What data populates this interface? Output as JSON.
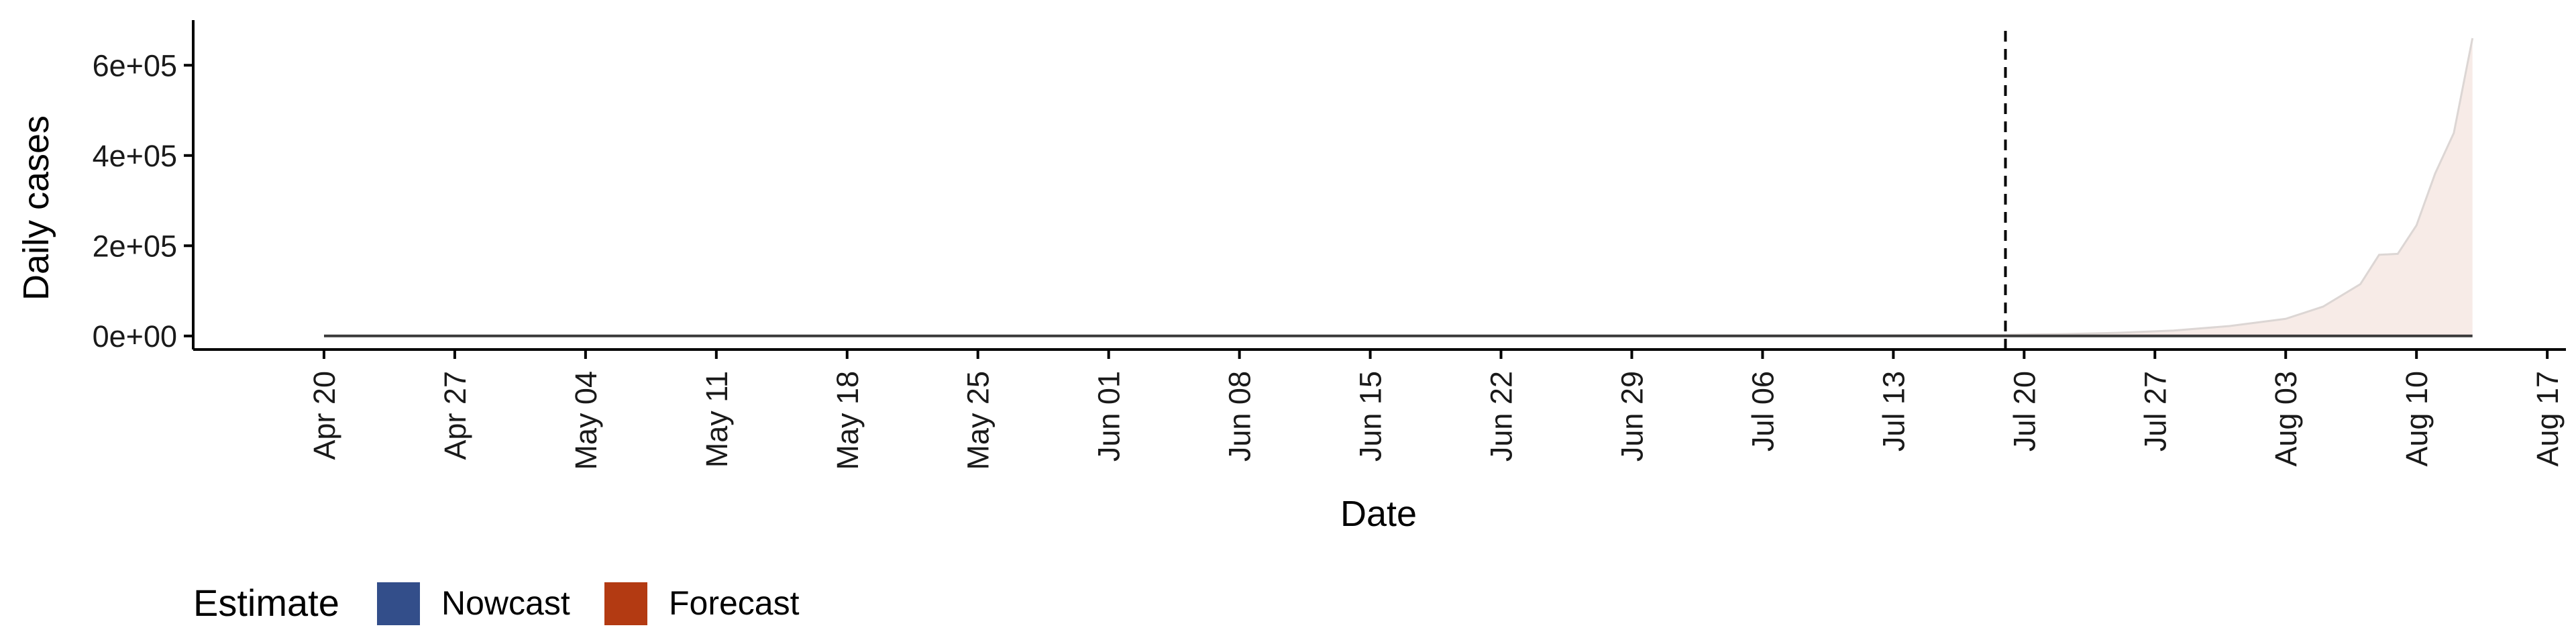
{
  "chart_data": {
    "type": "area",
    "title": "",
    "xlabel": "Date",
    "ylabel": "Daily cases",
    "x_ticks": [
      "Apr 20",
      "Apr 27",
      "May 04",
      "May 11",
      "May 18",
      "May 25",
      "Jun 01",
      "Jun 08",
      "Jun 15",
      "Jun 22",
      "Jun 29",
      "Jul 06",
      "Jul 13",
      "Jul 20",
      "Jul 27",
      "Aug 03",
      "Aug 10",
      "Aug 17"
    ],
    "y_ticks": [
      "0e+00",
      "2e+05",
      "4e+05",
      "6e+05"
    ],
    "xlim": [
      "2020-04-13",
      "2020-08-18"
    ],
    "ylim": [
      -30000,
      700000
    ],
    "grid": false,
    "legend": {
      "title": "Estimate",
      "position": "bottom-left",
      "items": [
        {
          "label": "Nowcast",
          "color": "#334E8A"
        },
        {
          "label": "Forecast",
          "color": "#B33A12"
        }
      ]
    },
    "forecast_start_date": "2020-07-19",
    "series": [
      {
        "name": "Nowcast",
        "color": "#334E8A",
        "x": [
          "2020-04-20",
          "2020-05-04",
          "2020-05-18",
          "2020-06-01",
          "2020-06-15",
          "2020-06-29",
          "2020-07-13",
          "2020-07-19"
        ],
        "median": [
          0,
          0,
          0,
          0,
          0,
          0,
          0,
          0
        ],
        "upper": [
          0,
          0,
          0,
          0,
          200,
          700,
          1500,
          2500
        ],
        "lower": [
          0,
          0,
          0,
          0,
          0,
          0,
          0,
          0
        ]
      },
      {
        "name": "Forecast",
        "color": "#B33A12",
        "x": [
          "2020-07-19",
          "2020-07-22",
          "2020-07-25",
          "2020-07-28",
          "2020-07-31",
          "2020-08-03",
          "2020-08-05",
          "2020-08-07",
          "2020-08-08",
          "2020-08-09",
          "2020-08-10",
          "2020-08-11",
          "2020-08-12",
          "2020-08-13"
        ],
        "median": [
          0,
          0,
          0,
          0,
          0,
          0,
          0,
          0,
          0,
          0,
          0,
          0,
          0,
          0
        ],
        "upper": [
          2500,
          4000,
          7000,
          12000,
          22000,
          38000,
          65000,
          115000,
          180000,
          182000,
          245000,
          360000,
          450000,
          660000
        ],
        "lower": [
          0,
          0,
          0,
          0,
          0,
          0,
          0,
          0,
          0,
          0,
          0,
          0,
          0,
          0
        ]
      }
    ]
  }
}
